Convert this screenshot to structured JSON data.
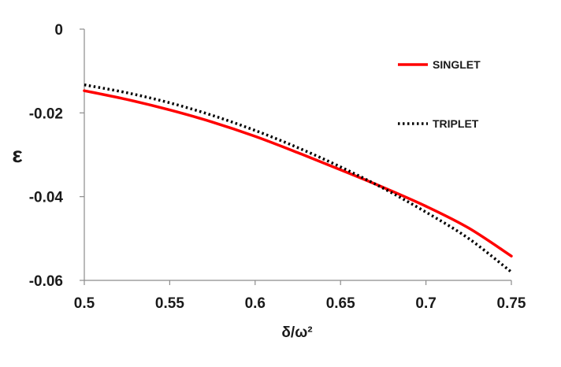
{
  "chart_data": {
    "type": "line",
    "title": "",
    "xlabel": "δ/ω²",
    "ylabel": "ε",
    "xlim": [
      0.5,
      0.75
    ],
    "ylim": [
      -0.06,
      0
    ],
    "x_ticks": [
      "0.5",
      "0.55",
      "0.6",
      "0.65",
      "0.7",
      "0.75"
    ],
    "y_ticks": [
      "0",
      "-0.02",
      "-0.04",
      "-0.06"
    ],
    "x_tick_values": [
      0.5,
      0.55,
      0.6,
      0.65,
      0.7,
      0.75
    ],
    "y_tick_values": [
      0,
      -0.02,
      -0.04,
      -0.06
    ],
    "grid": false,
    "legend_position": "top-right",
    "series": [
      {
        "name": "SINGLET",
        "style": "solid",
        "color": "#ff0000",
        "x": [
          0.5,
          0.525,
          0.55,
          0.575,
          0.6,
          0.625,
          0.65,
          0.675,
          0.7,
          0.725,
          0.75
        ],
        "y": [
          -0.0147,
          -0.0168,
          -0.0193,
          -0.0222,
          -0.0256,
          -0.0295,
          -0.0336,
          -0.0378,
          -0.0423,
          -0.0475,
          -0.0542
        ]
      },
      {
        "name": "TRIPLET",
        "style": "dotted",
        "color": "#000000",
        "x": [
          0.5,
          0.525,
          0.55,
          0.575,
          0.6,
          0.625,
          0.65,
          0.675,
          0.7,
          0.725,
          0.75
        ],
        "y": [
          -0.0133,
          -0.0152,
          -0.0176,
          -0.0206,
          -0.0242,
          -0.0283,
          -0.0329,
          -0.038,
          -0.0437,
          -0.05,
          -0.058
        ]
      }
    ]
  }
}
